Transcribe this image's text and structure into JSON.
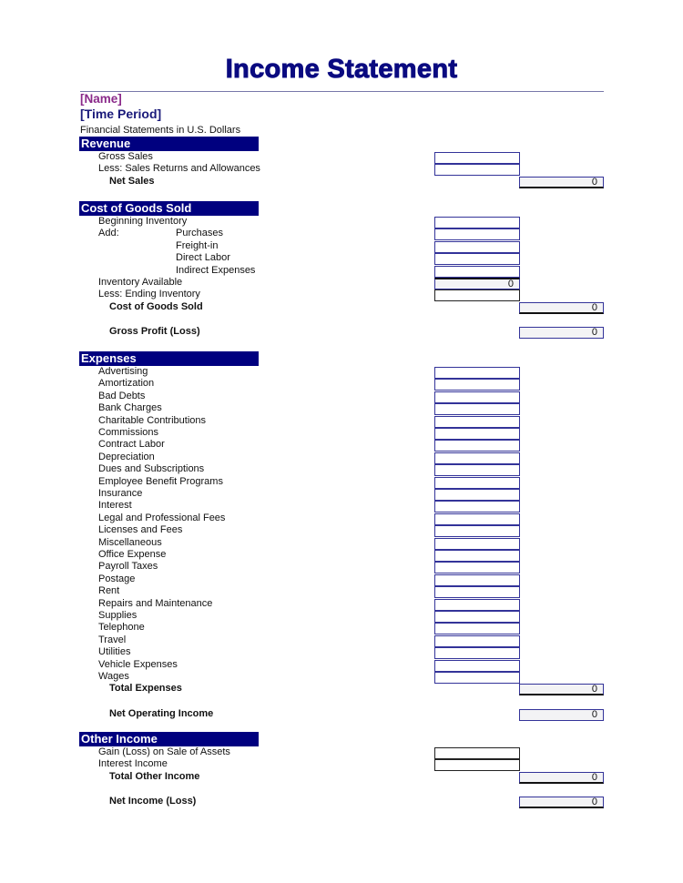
{
  "title": "Income Statement",
  "name": "[Name]",
  "time_period": "[Time Period]",
  "subtitle": "Financial Statements in U.S. Dollars",
  "colors": {
    "header_bg": "#00007f",
    "title": "#0a0a80",
    "name": "#8a2a8a",
    "box_border": "#333399"
  },
  "sections": [
    {
      "header": "Revenue",
      "items": [
        {
          "label": "Gross Sales",
          "box": "input"
        },
        {
          "label": "Less: Sales Returns and Allowances",
          "box": "input"
        },
        {
          "label": "Net Sales",
          "bold": true,
          "box": "total",
          "value": "0"
        }
      ]
    },
    {
      "header": "Cost of Goods Sold",
      "items": [
        {
          "label": "Beginning Inventory",
          "box": "input"
        },
        {
          "label": "Add:",
          "sublabel": "Purchases",
          "box": "input"
        },
        {
          "sublabel": "Freight-in",
          "box": "input"
        },
        {
          "sublabel": "Direct Labor",
          "box": "input"
        },
        {
          "sublabel": "Indirect Expenses",
          "box": "input"
        },
        {
          "label": "Inventory Available",
          "box": "input-shaded",
          "value": "0"
        },
        {
          "label": "Less: Ending Inventory",
          "box": "input-black"
        },
        {
          "label": "Cost of Goods Sold",
          "bold": true,
          "box": "total",
          "value": "0"
        },
        {
          "label": "Gross Profit (Loss)",
          "bold": true,
          "box": "total-plain",
          "value": "0",
          "gap": true
        }
      ]
    },
    {
      "header": "Expenses",
      "items": [
        {
          "label": "Advertising",
          "box": "input"
        },
        {
          "label": "Amortization",
          "box": "input"
        },
        {
          "label": "Bad Debts",
          "box": "input"
        },
        {
          "label": "Bank Charges",
          "box": "input"
        },
        {
          "label": "Charitable Contributions",
          "box": "input"
        },
        {
          "label": "Commissions",
          "box": "input"
        },
        {
          "label": "Contract Labor",
          "box": "input"
        },
        {
          "label": "Depreciation",
          "box": "input"
        },
        {
          "label": "Dues and Subscriptions",
          "box": "input"
        },
        {
          "label": "Employee Benefit Programs",
          "box": "input"
        },
        {
          "label": "Insurance",
          "box": "input"
        },
        {
          "label": "Interest",
          "box": "input"
        },
        {
          "label": "Legal and Professional Fees",
          "box": "input"
        },
        {
          "label": "Licenses and Fees",
          "box": "input"
        },
        {
          "label": "Miscellaneous",
          "box": "input"
        },
        {
          "label": "Office Expense",
          "box": "input"
        },
        {
          "label": "Payroll Taxes",
          "box": "input"
        },
        {
          "label": "Postage",
          "box": "input"
        },
        {
          "label": "Rent",
          "box": "input"
        },
        {
          "label": "Repairs and Maintenance",
          "box": "input"
        },
        {
          "label": "Supplies",
          "box": "input"
        },
        {
          "label": "Telephone",
          "box": "input"
        },
        {
          "label": "Travel",
          "box": "input"
        },
        {
          "label": "Utilities",
          "box": "input"
        },
        {
          "label": "Vehicle Expenses",
          "box": "input"
        },
        {
          "label": "Wages",
          "box": "input"
        },
        {
          "label": "Total Expenses",
          "bold": true,
          "box": "total",
          "value": "0"
        },
        {
          "label": "Net Operating Income",
          "bold": true,
          "box": "total-plain",
          "value": "0",
          "gap": true
        }
      ]
    },
    {
      "header": "Other Income",
      "items": [
        {
          "label": "Gain (Loss) on Sale of Assets",
          "box": "input-black"
        },
        {
          "label": "Interest Income",
          "box": "input-black"
        },
        {
          "label": "Total Other Income",
          "bold": true,
          "box": "total",
          "value": "0"
        },
        {
          "label": "Net Income (Loss)",
          "bold": true,
          "box": "total",
          "value": "0",
          "gap": true
        }
      ]
    }
  ]
}
